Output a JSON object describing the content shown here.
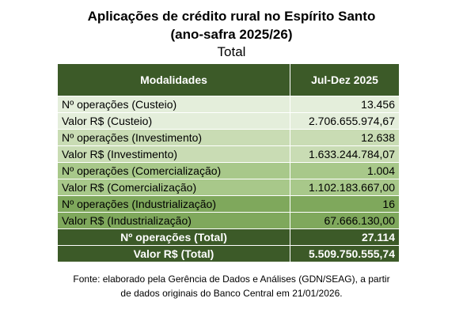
{
  "title": {
    "line1": "Aplicações de crédito rural no Espírito Santo",
    "line2": "(ano-safra 2025/26)",
    "line3": "Total"
  },
  "table": {
    "headers": [
      "Modalidades",
      "Jul-Dez 2025"
    ],
    "rows": [
      {
        "label": "Nº operações (Custeio)",
        "value": "13.456"
      },
      {
        "label": "Valor R$ (Custeio)",
        "value": "2.706.655.974,67"
      },
      {
        "label": "Nº operações (Investimento)",
        "value": "12.638"
      },
      {
        "label": "Valor R$ (Investimento)",
        "value": "1.633.244.784,07"
      },
      {
        "label": "Nº operações (Comercialização)",
        "value": "1.004"
      },
      {
        "label": "Valor R$ (Comercialização)",
        "value": "1.102.183.667,00"
      },
      {
        "label": "Nº operações (Industrialização)",
        "value": "16"
      },
      {
        "label": "Valor R$ (Industrialização)",
        "value": "67.666.130,00"
      }
    ],
    "totals": [
      {
        "label": "Nº operações (Total)",
        "value": "27.114"
      },
      {
        "label": "Valor R$ (Total)",
        "value": "5.509.750.555,74"
      }
    ]
  },
  "footnote": {
    "line1": "Fonte: elaborado pela Gerência de Dados e Análises (GDN/SEAG), a partir",
    "line2": "de dados originais do Banco Central em 21/01/2026."
  },
  "colors": {
    "header": "#3c5a28",
    "band1": "#e4eedb",
    "band2": "#c9dcb4",
    "band3": "#a8c88a",
    "band4": "#7fa85c"
  }
}
